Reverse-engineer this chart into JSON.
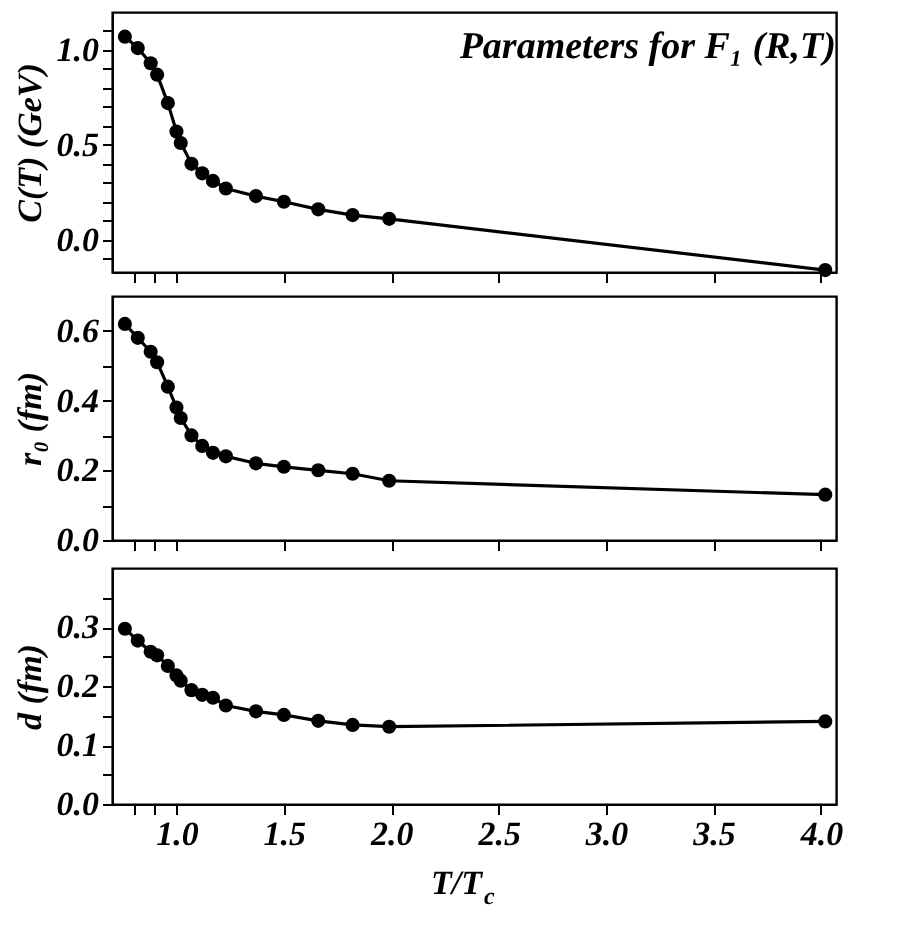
{
  "chart_data": [
    {
      "type": "line",
      "marker": "circle",
      "annotations": [
        "Parameters for F₁ (R,T)"
      ],
      "ylabel": "C(T)  (GeV)",
      "tick_labels": "y",
      "x": [
        0.76,
        0.82,
        0.88,
        0.91,
        0.96,
        1.0,
        1.02,
        1.07,
        1.12,
        1.17,
        1.23,
        1.37,
        1.5,
        1.66,
        1.82,
        1.99,
        4.02
      ],
      "series": [
        {
          "color": "#000000",
          "values": [
            1.07,
            1.01,
            0.93,
            0.87,
            0.72,
            0.57,
            0.51,
            0.4,
            0.35,
            0.31,
            0.27,
            0.23,
            0.2,
            0.16,
            0.13,
            0.11,
            -0.16
          ]
        }
      ],
      "xlim": [
        0.7,
        4.07
      ],
      "xticks": [
        {
          "value": 0.8,
          "label": null
        },
        {
          "value": 0.9,
          "label": null
        },
        {
          "value": 1.0,
          "label": null
        },
        {
          "value": 1.5,
          "label": null
        },
        {
          "value": 2.0,
          "label": null
        },
        {
          "value": 2.5,
          "label": null
        },
        {
          "value": 3.0,
          "label": null
        },
        {
          "value": 3.5,
          "label": null
        },
        {
          "value": 4.0,
          "label": null
        }
      ],
      "ylim": [
        -0.17,
        1.2
      ],
      "yticks": [
        {
          "value": -0.1,
          "label": null
        },
        {
          "value": 0.0,
          "label": "0.0"
        },
        {
          "value": 0.1,
          "label": null
        },
        {
          "value": 0.2,
          "label": null
        },
        {
          "value": 0.3,
          "label": null
        },
        {
          "value": 0.4,
          "label": null
        },
        {
          "value": 0.5,
          "label": "0.5"
        },
        {
          "value": 0.6,
          "label": null
        },
        {
          "value": 0.7,
          "label": null
        },
        {
          "value": 0.8,
          "label": null
        },
        {
          "value": 0.9,
          "label": null
        },
        {
          "value": 1.0,
          "label": "1.0"
        },
        {
          "value": 1.1,
          "label": null
        }
      ]
    },
    {
      "type": "line",
      "marker": "circle",
      "ylabel": "r₀  (fm)",
      "tick_labels": "y",
      "x": [
        0.76,
        0.82,
        0.88,
        0.91,
        0.96,
        1.0,
        1.02,
        1.07,
        1.12,
        1.17,
        1.23,
        1.37,
        1.5,
        1.66,
        1.82,
        1.99,
        4.02
      ],
      "series": [
        {
          "color": "#000000",
          "values": [
            0.62,
            0.58,
            0.54,
            0.51,
            0.44,
            0.38,
            0.35,
            0.3,
            0.27,
            0.25,
            0.24,
            0.22,
            0.21,
            0.2,
            0.19,
            0.17,
            0.13
          ]
        }
      ],
      "xlim": [
        0.7,
        4.07
      ],
      "xticks": [
        {
          "value": 0.8,
          "label": null
        },
        {
          "value": 0.9,
          "label": null
        },
        {
          "value": 1.0,
          "label": null
        },
        {
          "value": 1.5,
          "label": null
        },
        {
          "value": 2.0,
          "label": null
        },
        {
          "value": 2.5,
          "label": null
        },
        {
          "value": 3.0,
          "label": null
        },
        {
          "value": 3.5,
          "label": null
        },
        {
          "value": 4.0,
          "label": null
        }
      ],
      "ylim": [
        0.0,
        0.7
      ],
      "yticks": [
        {
          "value": 0.0,
          "label": "0.0"
        },
        {
          "value": 0.1,
          "label": null
        },
        {
          "value": 0.2,
          "label": "0.2"
        },
        {
          "value": 0.3,
          "label": null
        },
        {
          "value": 0.4,
          "label": "0.4"
        },
        {
          "value": 0.5,
          "label": null
        },
        {
          "value": 0.6,
          "label": "0.6"
        }
      ]
    },
    {
      "type": "line",
      "marker": "circle",
      "ylabel": "d  (fm)",
      "xlabel": "T/T$_{c}$",
      "x": [
        0.76,
        0.82,
        0.88,
        0.91,
        0.96,
        1.0,
        1.02,
        1.07,
        1.12,
        1.17,
        1.23,
        1.37,
        1.5,
        1.66,
        1.82,
        1.99,
        4.02
      ],
      "series": [
        {
          "color": "#000000",
          "values": [
            0.297,
            0.277,
            0.258,
            0.252,
            0.234,
            0.218,
            0.209,
            0.193,
            0.185,
            0.18,
            0.167,
            0.157,
            0.151,
            0.141,
            0.134,
            0.131,
            0.14
          ]
        }
      ],
      "xlim": [
        0.7,
        4.07
      ],
      "xticks": [
        {
          "value": 0.8,
          "label": null
        },
        {
          "value": 0.9,
          "label": null
        },
        {
          "value": 1.0,
          "label": "1.0"
        },
        {
          "value": 1.5,
          "label": "1.5"
        },
        {
          "value": 2.0,
          "label": "2.0"
        },
        {
          "value": 2.5,
          "label": "2.5"
        },
        {
          "value": 3.0,
          "label": "3.0"
        },
        {
          "value": 3.5,
          "label": "3.5"
        },
        {
          "value": 4.0,
          "label": "4.0"
        }
      ],
      "ylim": [
        0.0,
        0.4
      ],
      "yticks": [
        {
          "value": 0.0,
          "label": "0.0"
        },
        {
          "value": 0.05,
          "label": null
        },
        {
          "value": 0.1,
          "label": "0.1"
        },
        {
          "value": 0.15,
          "label": null
        },
        {
          "value": 0.2,
          "label": "0.2"
        },
        {
          "value": 0.25,
          "label": null
        },
        {
          "value": 0.3,
          "label": "0.3"
        },
        {
          "value": 0.35,
          "label": null
        }
      ]
    }
  ]
}
